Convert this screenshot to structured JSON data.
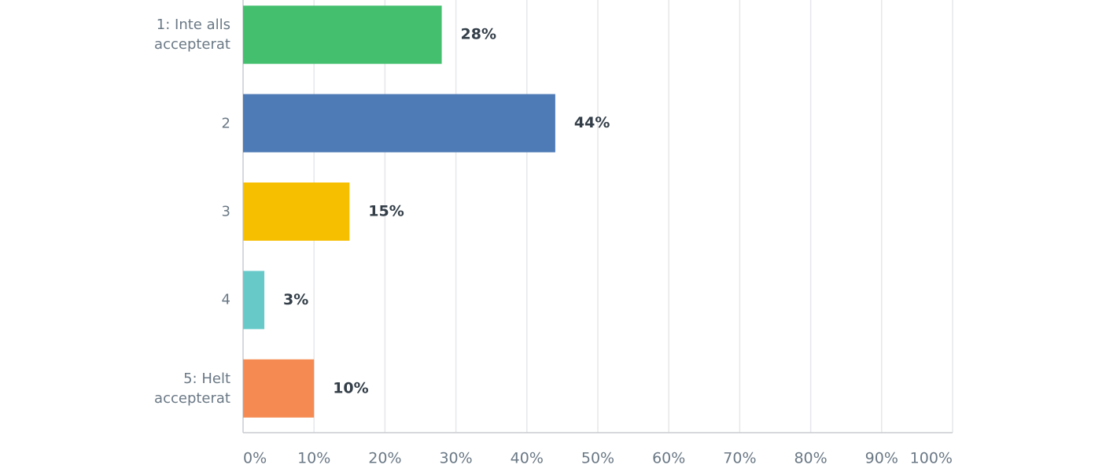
{
  "chart_data": {
    "type": "hbar",
    "categories": [
      "1: Inte alls accepterat",
      "2",
      "3",
      "4",
      "5: Helt accepterat"
    ],
    "values": [
      28,
      44,
      15,
      3,
      10
    ],
    "value_labels": [
      "28%",
      "44%",
      "15%",
      "3%",
      "10%"
    ],
    "colors": [
      "#43bf6e",
      "#4e7ab5",
      "#f6bf00",
      "#68c9c9",
      "#f58b52"
    ],
    "xlim": [
      0,
      100
    ],
    "xticks": [
      {
        "value": 0,
        "label": "0%"
      },
      {
        "value": 10,
        "label": "10%"
      },
      {
        "value": 20,
        "label": "20%"
      },
      {
        "value": 30,
        "label": "30%"
      },
      {
        "value": 40,
        "label": "40%"
      },
      {
        "value": 50,
        "label": "50%"
      },
      {
        "value": 60,
        "label": "60%"
      },
      {
        "value": 70,
        "label": "70%"
      },
      {
        "value": 80,
        "label": "80%"
      },
      {
        "value": 90,
        "label": "90%"
      },
      {
        "value": 100,
        "label": "100%"
      }
    ],
    "grid": true
  }
}
